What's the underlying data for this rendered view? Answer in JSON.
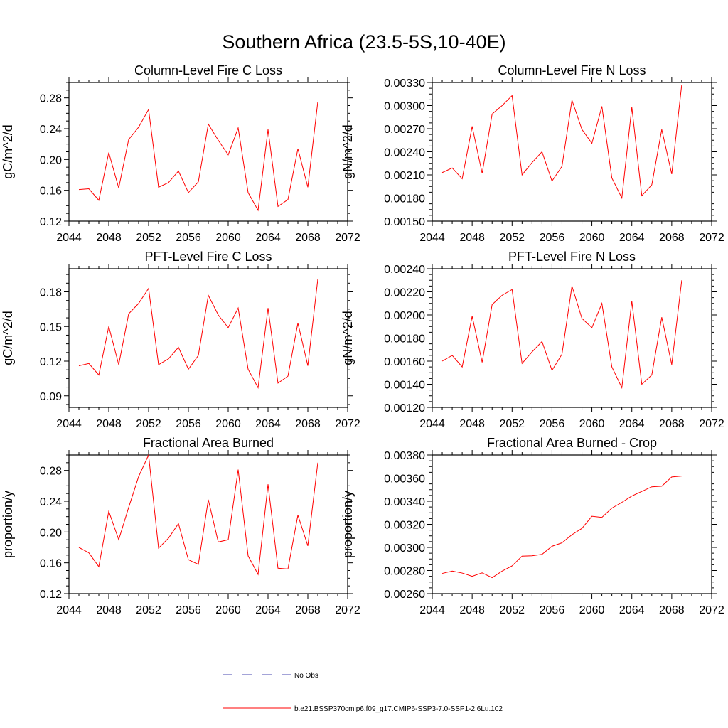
{
  "page": {
    "title": "Southern Africa (23.5-5S,10-40E)"
  },
  "legend": {
    "entries": [
      {
        "label": "No Obs",
        "color": "#4a4ab0",
        "dashed": true
      },
      {
        "label": "b.e21.BSSP370cmip6.f09_g17.CMIP6-SSP3-7.0-SSP1-2.6Lu.102",
        "color": "#ff0000",
        "dashed": false
      }
    ]
  },
  "chart_data": [
    {
      "type": "line",
      "title": "Column-Level Fire C Loss",
      "ylabel": "gC/m^2/d",
      "xlabel": "",
      "xlim": [
        2044,
        2072
      ],
      "ylim": [
        0.12,
        0.3
      ],
      "yticks": [
        "0.12",
        "0.16",
        "0.20",
        "0.24",
        "0.28"
      ],
      "xticks": [
        "2044",
        "2048",
        "2052",
        "2056",
        "2060",
        "2064",
        "2068",
        "2072"
      ],
      "color": "#ff0000",
      "x": [
        2045,
        2046,
        2047,
        2048,
        2049,
        2050,
        2051,
        2052,
        2053,
        2054,
        2055,
        2056,
        2057,
        2058,
        2059,
        2060,
        2061,
        2062,
        2063,
        2064,
        2065,
        2066,
        2067,
        2068,
        2069
      ],
      "y": [
        0.161,
        0.162,
        0.147,
        0.209,
        0.163,
        0.226,
        0.242,
        0.265,
        0.164,
        0.17,
        0.185,
        0.157,
        0.171,
        0.246,
        0.225,
        0.206,
        0.241,
        0.157,
        0.134,
        0.239,
        0.139,
        0.148,
        0.214,
        0.164,
        0.275
      ]
    },
    {
      "type": "line",
      "title": "Column-Level Fire N Loss",
      "ylabel": "gN/m^2/d",
      "xlabel": "",
      "xlim": [
        2044,
        2072
      ],
      "ylim": [
        0.0015,
        0.0033
      ],
      "yticks": [
        "0.00150",
        "0.00180",
        "0.00210",
        "0.00240",
        "0.00270",
        "0.00300",
        "0.00330"
      ],
      "xticks": [
        "2044",
        "2048",
        "2052",
        "2056",
        "2060",
        "2064",
        "2068",
        "2072"
      ],
      "color": "#ff0000",
      "x": [
        2045,
        2046,
        2047,
        2048,
        2049,
        2050,
        2051,
        2052,
        2053,
        2054,
        2055,
        2056,
        2057,
        2058,
        2059,
        2060,
        2061,
        2062,
        2063,
        2064,
        2065,
        2066,
        2067,
        2068,
        2069
      ],
      "y": [
        0.00213,
        0.00219,
        0.00205,
        0.00273,
        0.00212,
        0.00289,
        0.003,
        0.00313,
        0.0021,
        0.00226,
        0.0024,
        0.00202,
        0.00221,
        0.00307,
        0.00269,
        0.00251,
        0.00299,
        0.00206,
        0.0018,
        0.00298,
        0.00183,
        0.00197,
        0.00269,
        0.00211,
        0.00327
      ]
    },
    {
      "type": "line",
      "title": "PFT-Level Fire C Loss",
      "ylabel": "gC/m^2/d",
      "xlabel": "",
      "xlim": [
        2044,
        2072
      ],
      "ylim": [
        0.08,
        0.2
      ],
      "yticks": [
        "0.09",
        "0.12",
        "0.15",
        "0.18"
      ],
      "xticks": [
        "2044",
        "2048",
        "2052",
        "2056",
        "2060",
        "2064",
        "2068",
        "2072"
      ],
      "color": "#ff0000",
      "x": [
        2045,
        2046,
        2047,
        2048,
        2049,
        2050,
        2051,
        2052,
        2053,
        2054,
        2055,
        2056,
        2057,
        2058,
        2059,
        2060,
        2061,
        2062,
        2063,
        2064,
        2065,
        2066,
        2067,
        2068,
        2069
      ],
      "y": [
        0.116,
        0.118,
        0.108,
        0.15,
        0.117,
        0.161,
        0.17,
        0.183,
        0.117,
        0.122,
        0.132,
        0.113,
        0.125,
        0.177,
        0.16,
        0.149,
        0.166,
        0.113,
        0.097,
        0.166,
        0.101,
        0.107,
        0.153,
        0.116,
        0.191
      ]
    },
    {
      "type": "line",
      "title": "PFT-Level Fire N Loss",
      "ylabel": "gN/m^2/d",
      "xlabel": "",
      "xlim": [
        2044,
        2072
      ],
      "ylim": [
        0.0012,
        0.0024
      ],
      "yticks": [
        "0.00120",
        "0.00140",
        "0.00160",
        "0.00180",
        "0.00200",
        "0.00220",
        "0.00240"
      ],
      "xticks": [
        "2044",
        "2048",
        "2052",
        "2056",
        "2060",
        "2064",
        "2068",
        "2072"
      ],
      "color": "#ff0000",
      "x": [
        2045,
        2046,
        2047,
        2048,
        2049,
        2050,
        2051,
        2052,
        2053,
        2054,
        2055,
        2056,
        2057,
        2058,
        2059,
        2060,
        2061,
        2062,
        2063,
        2064,
        2065,
        2066,
        2067,
        2068,
        2069
      ],
      "y": [
        0.0016,
        0.00165,
        0.00155,
        0.00199,
        0.00159,
        0.00209,
        0.00217,
        0.00222,
        0.00158,
        0.00168,
        0.00177,
        0.00152,
        0.00166,
        0.00225,
        0.00197,
        0.00189,
        0.0021,
        0.00155,
        0.00137,
        0.00212,
        0.0014,
        0.00148,
        0.00198,
        0.00157,
        0.0023
      ]
    },
    {
      "type": "line",
      "title": "Fractional Area Burned",
      "ylabel": "proportion/y",
      "xlabel": "",
      "xlim": [
        2044,
        2072
      ],
      "ylim": [
        0.12,
        0.3
      ],
      "yticks": [
        "0.12",
        "0.16",
        "0.20",
        "0.24",
        "0.28"
      ],
      "xticks": [
        "2044",
        "2048",
        "2052",
        "2056",
        "2060",
        "2064",
        "2068",
        "2072"
      ],
      "color": "#ff0000",
      "x": [
        2045,
        2046,
        2047,
        2048,
        2049,
        2050,
        2051,
        2052,
        2053,
        2054,
        2055,
        2056,
        2057,
        2058,
        2059,
        2060,
        2061,
        2062,
        2063,
        2064,
        2065,
        2066,
        2067,
        2068,
        2069
      ],
      "y": [
        0.18,
        0.173,
        0.155,
        0.227,
        0.19,
        0.232,
        0.272,
        0.3,
        0.179,
        0.192,
        0.211,
        0.164,
        0.158,
        0.242,
        0.187,
        0.19,
        0.281,
        0.169,
        0.145,
        0.262,
        0.153,
        0.152,
        0.222,
        0.182,
        0.29
      ]
    },
    {
      "type": "line",
      "title": "Fractional Area Burned - Crop",
      "ylabel": "proportion/y",
      "xlabel": "",
      "xlim": [
        2044,
        2072
      ],
      "ylim": [
        0.0026,
        0.0038
      ],
      "yticks": [
        "0.00260",
        "0.00280",
        "0.00300",
        "0.00320",
        "0.00340",
        "0.00360",
        "0.00380"
      ],
      "xticks": [
        "2044",
        "2048",
        "2052",
        "2056",
        "2060",
        "2064",
        "2068",
        "2072"
      ],
      "color": "#ff0000",
      "x": [
        2045,
        2046,
        2047,
        2048,
        2049,
        2050,
        2051,
        2052,
        2053,
        2054,
        2055,
        2056,
        2057,
        2058,
        2059,
        2060,
        2061,
        2062,
        2063,
        2064,
        2065,
        2066,
        2067,
        2068,
        2069
      ],
      "y": [
        0.002775,
        0.002795,
        0.002778,
        0.00275,
        0.00278,
        0.002738,
        0.002795,
        0.00284,
        0.002925,
        0.002928,
        0.00294,
        0.00301,
        0.00304,
        0.00311,
        0.003165,
        0.00327,
        0.00326,
        0.00334,
        0.00339,
        0.003445,
        0.003485,
        0.003525,
        0.00353,
        0.00361,
        0.003618
      ]
    }
  ]
}
